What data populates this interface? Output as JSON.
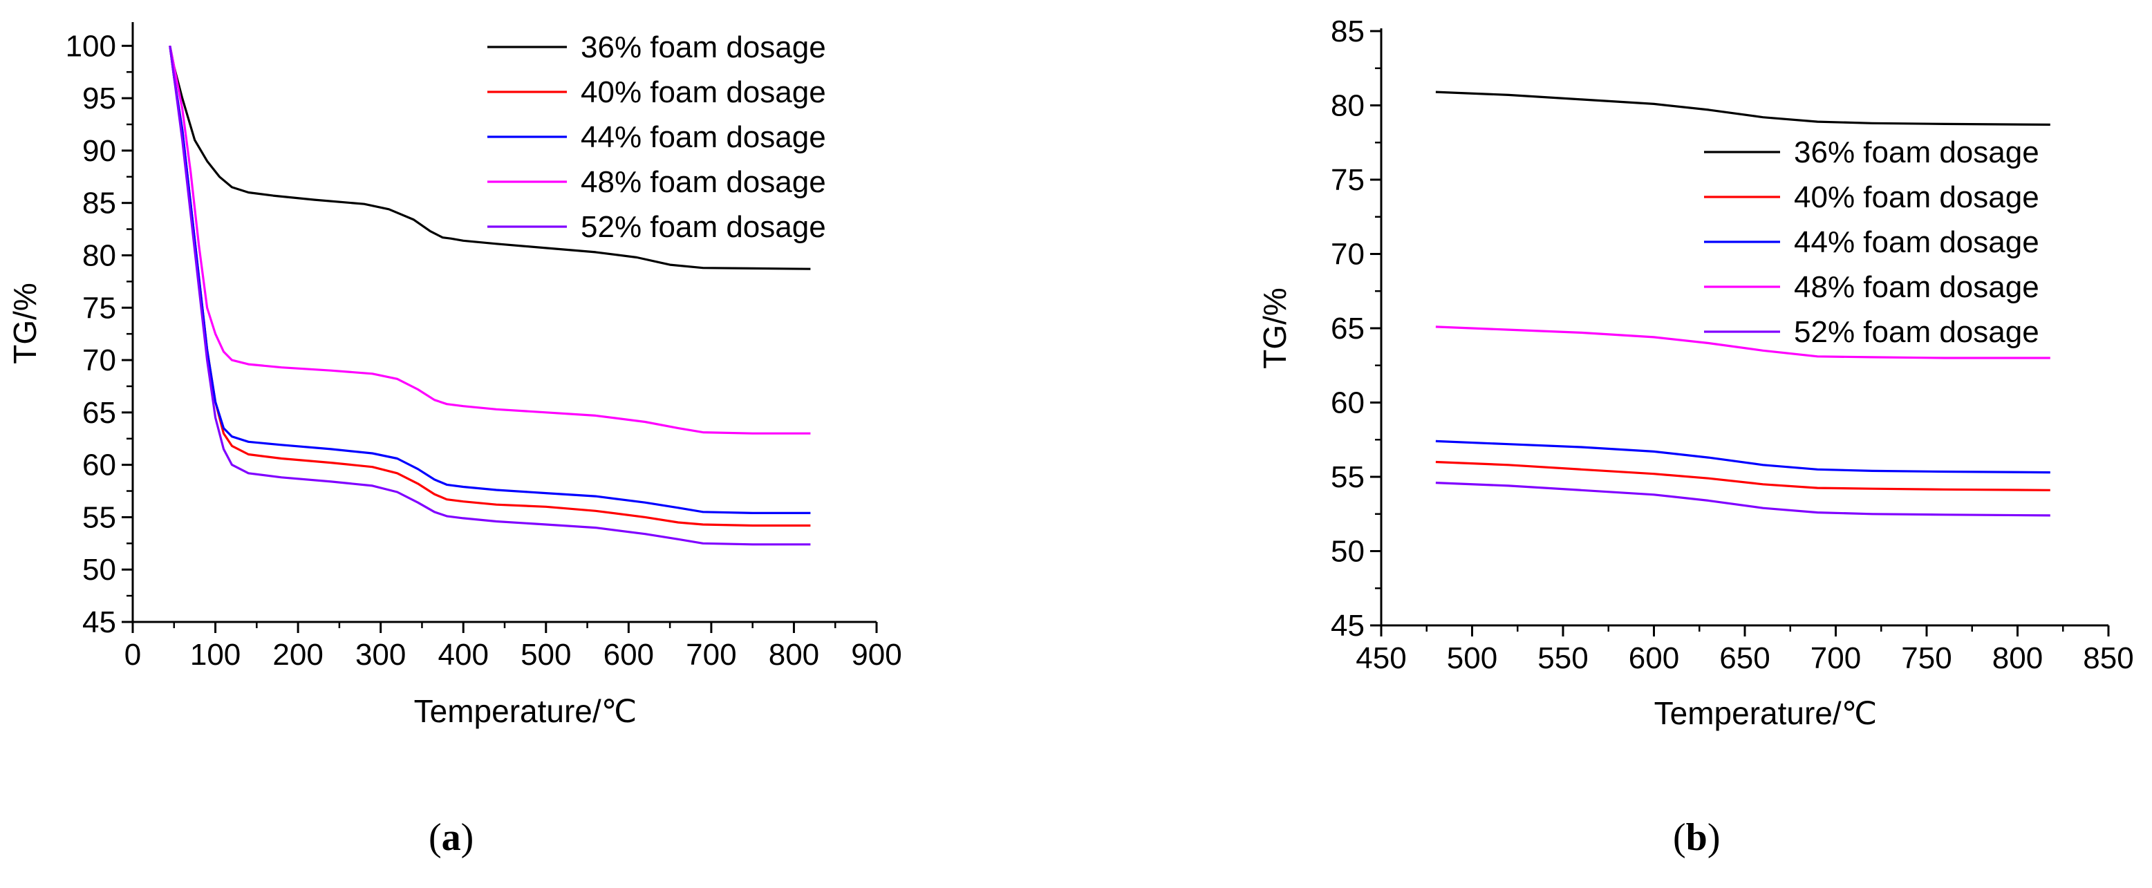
{
  "panel_labels": {
    "a": {
      "open": "(",
      "letter": "a",
      "close": ")"
    },
    "b": {
      "open": "(",
      "letter": "b",
      "close": ")"
    }
  },
  "chart_data": [
    {
      "type": "line",
      "panel": "a",
      "xlabel": "Temperature/℃",
      "ylabel": "TG/%",
      "xlim": [
        0,
        900
      ],
      "ylim": [
        45,
        102
      ],
      "xticks": [
        0,
        100,
        200,
        300,
        400,
        500,
        600,
        700,
        800,
        900
      ],
      "yticks": [
        45,
        50,
        55,
        60,
        65,
        70,
        75,
        80,
        85,
        90,
        95,
        100
      ],
      "grid": false,
      "legend_position": "top-right",
      "series": [
        {
          "name": "36% foam dosage",
          "color": "#000000",
          "x": [
            45,
            50,
            60,
            75,
            90,
            105,
            120,
            140,
            170,
            220,
            280,
            310,
            340,
            360,
            375,
            385,
            400,
            440,
            500,
            560,
            610,
            650,
            690,
            750,
            820
          ],
          "y": [
            100,
            98,
            95,
            91,
            89,
            87.5,
            86.5,
            86,
            85.7,
            85.3,
            84.9,
            84.4,
            83.4,
            82.3,
            81.7,
            81.6,
            81.4,
            81.1,
            80.7,
            80.3,
            79.8,
            79.1,
            78.8,
            78.75,
            78.7
          ]
        },
        {
          "name": "40% foam dosage",
          "color": "#ff0000",
          "x": [
            45,
            50,
            60,
            70,
            80,
            90,
            100,
            110,
            120,
            140,
            180,
            240,
            290,
            320,
            345,
            365,
            380,
            400,
            440,
            500,
            560,
            620,
            660,
            690,
            750,
            820
          ],
          "y": [
            100,
            97,
            92,
            85,
            78,
            71,
            66,
            63,
            61.8,
            61,
            60.6,
            60.2,
            59.8,
            59.2,
            58.2,
            57.2,
            56.7,
            56.5,
            56.2,
            56,
            55.6,
            55,
            54.5,
            54.3,
            54.2,
            54.2
          ]
        },
        {
          "name": "44% foam dosage",
          "color": "#0000ff",
          "x": [
            45,
            50,
            60,
            70,
            80,
            90,
            100,
            110,
            120,
            140,
            180,
            240,
            290,
            320,
            345,
            365,
            380,
            400,
            440,
            500,
            560,
            620,
            660,
            690,
            750,
            820
          ],
          "y": [
            100,
            97,
            92,
            85,
            78,
            71,
            66,
            63.5,
            62.7,
            62.2,
            61.9,
            61.5,
            61.1,
            60.6,
            59.6,
            58.6,
            58.1,
            57.9,
            57.6,
            57.3,
            57,
            56.4,
            55.9,
            55.5,
            55.4,
            55.4
          ]
        },
        {
          "name": "48% foam dosage",
          "color": "#ff00ff",
          "x": [
            45,
            50,
            60,
            70,
            80,
            90,
            100,
            110,
            120,
            140,
            180,
            240,
            290,
            320,
            345,
            365,
            380,
            400,
            440,
            500,
            560,
            620,
            660,
            690,
            750,
            820
          ],
          "y": [
            100,
            98,
            94,
            88,
            81,
            75,
            72.5,
            70.8,
            70,
            69.6,
            69.3,
            69,
            68.7,
            68.2,
            67.2,
            66.2,
            65.8,
            65.6,
            65.3,
            65,
            64.7,
            64.1,
            63.5,
            63.1,
            63,
            63
          ]
        },
        {
          "name": "52% foam dosage",
          "color": "#8000ff",
          "x": [
            45,
            50,
            60,
            70,
            80,
            90,
            100,
            110,
            120,
            140,
            180,
            240,
            290,
            320,
            345,
            365,
            380,
            400,
            440,
            500,
            560,
            620,
            660,
            690,
            750,
            820
          ],
          "y": [
            100,
            97,
            91,
            84,
            77,
            70,
            64.5,
            61.5,
            60,
            59.2,
            58.8,
            58.4,
            58,
            57.4,
            56.4,
            55.5,
            55.1,
            54.9,
            54.6,
            54.3,
            54,
            53.4,
            52.9,
            52.5,
            52.4,
            52.4
          ]
        }
      ]
    },
    {
      "type": "line",
      "panel": "b",
      "xlabel": "Temperature/℃",
      "ylabel": "TG/%",
      "xlim": [
        450,
        850
      ],
      "ylim": [
        45,
        85
      ],
      "xticks": [
        450,
        500,
        550,
        600,
        650,
        700,
        750,
        800,
        850
      ],
      "yticks": [
        45,
        50,
        55,
        60,
        65,
        70,
        75,
        80,
        85
      ],
      "grid": false,
      "legend_position": "top-right",
      "series": [
        {
          "name": "36% foam dosage",
          "color": "#000000",
          "x": [
            480,
            520,
            560,
            600,
            630,
            660,
            690,
            720,
            760,
            818
          ],
          "y": [
            80.9,
            80.7,
            80.4,
            80.1,
            79.7,
            79.2,
            78.9,
            78.8,
            78.75,
            78.7
          ]
        },
        {
          "name": "40% foam dosage",
          "color": "#ff0000",
          "x": [
            480,
            520,
            560,
            600,
            630,
            660,
            690,
            720,
            760,
            818
          ],
          "y": [
            56,
            55.8,
            55.5,
            55.2,
            54.9,
            54.5,
            54.25,
            54.2,
            54.15,
            54.1
          ]
        },
        {
          "name": "44% foam dosage",
          "color": "#0000ff",
          "x": [
            480,
            520,
            560,
            600,
            630,
            660,
            690,
            720,
            760,
            818
          ],
          "y": [
            57.4,
            57.2,
            57,
            56.7,
            56.3,
            55.8,
            55.5,
            55.4,
            55.35,
            55.3
          ]
        },
        {
          "name": "48% foam dosage",
          "color": "#ff00ff",
          "x": [
            480,
            520,
            560,
            600,
            630,
            660,
            690,
            720,
            760,
            818
          ],
          "y": [
            65.1,
            64.9,
            64.7,
            64.4,
            64,
            63.5,
            63.1,
            63.05,
            63,
            63
          ]
        },
        {
          "name": "52% foam dosage",
          "color": "#8000ff",
          "x": [
            480,
            520,
            560,
            600,
            630,
            660,
            690,
            720,
            760,
            818
          ],
          "y": [
            54.6,
            54.4,
            54.1,
            53.8,
            53.4,
            52.9,
            52.6,
            52.5,
            52.45,
            52.4
          ]
        }
      ]
    }
  ]
}
